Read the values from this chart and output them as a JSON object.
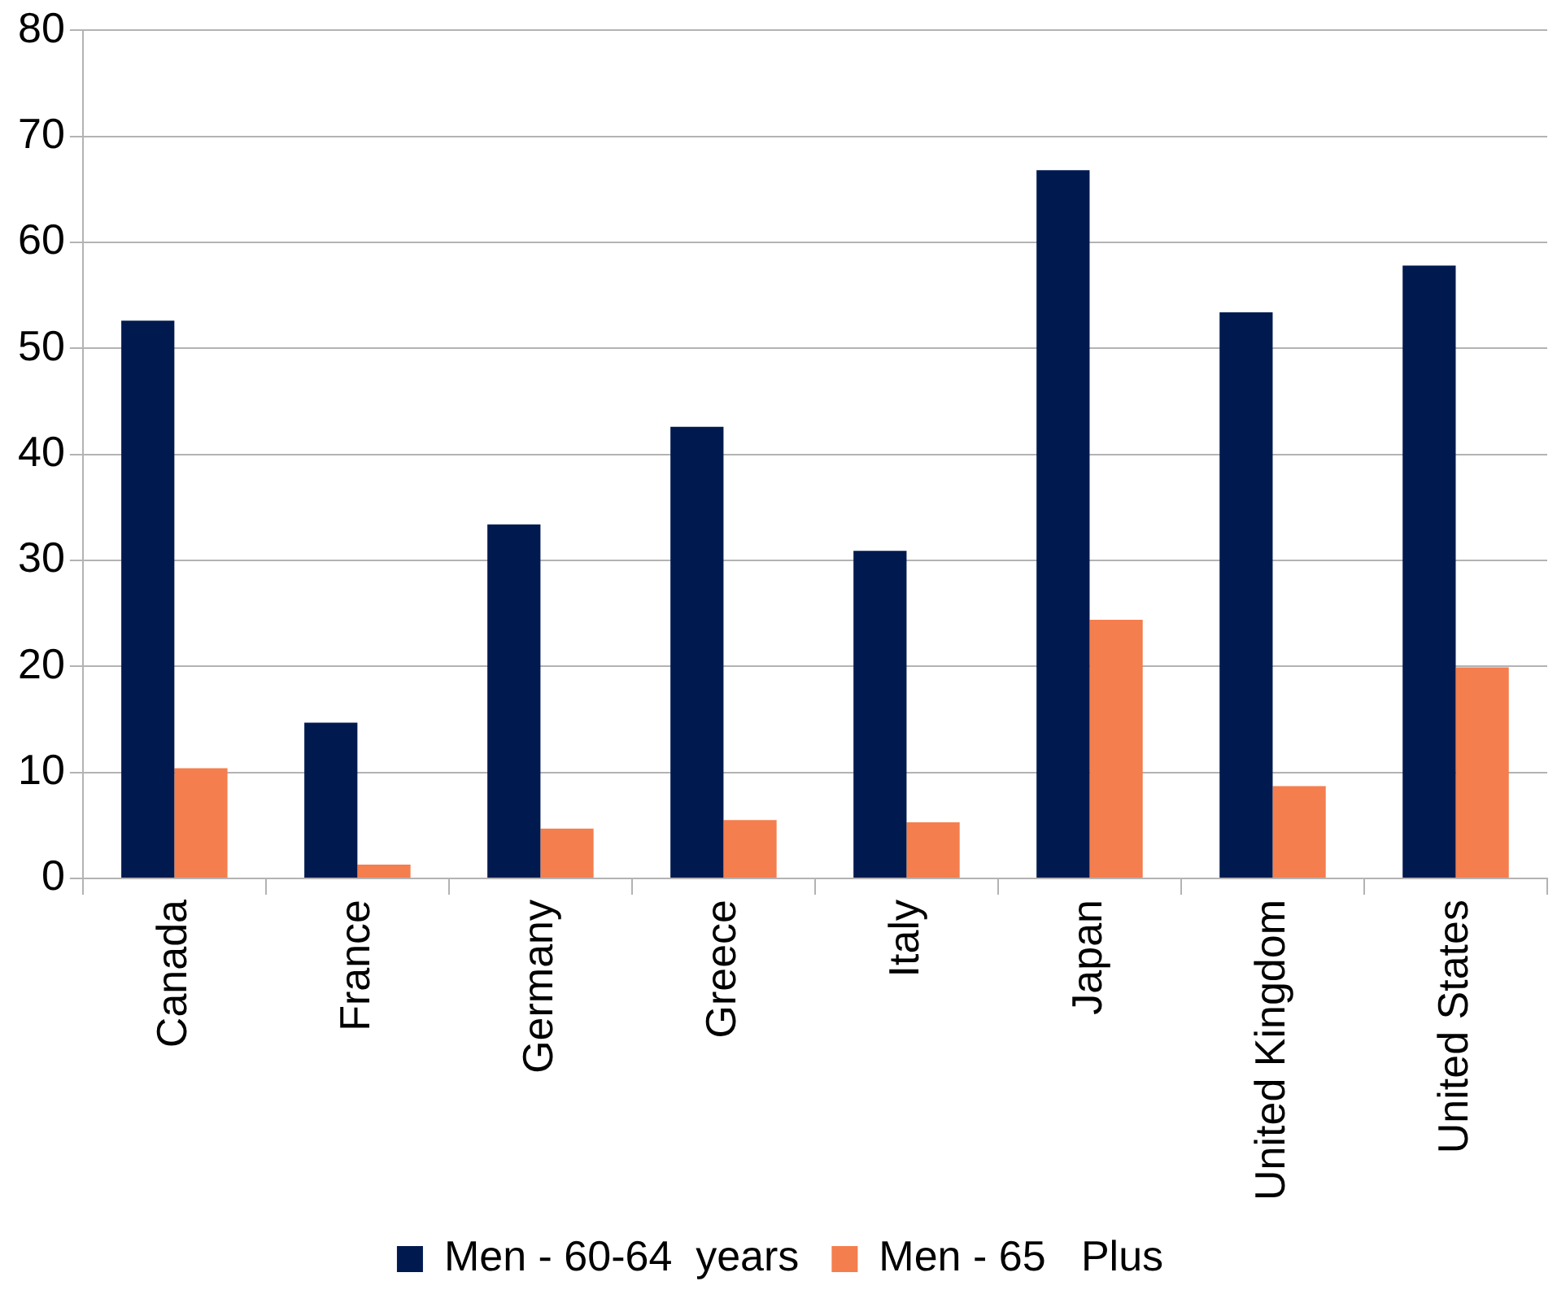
{
  "chart_data": {
    "type": "bar",
    "categories": [
      "Canada",
      "France",
      "Germany",
      "Greece",
      "Italy",
      "Japan",
      "United Kingdom",
      "United States"
    ],
    "series": [
      {
        "name": "Men - 60-64  years",
        "color": "#001a4f",
        "values": [
          52.6,
          14.7,
          33.4,
          42.6,
          30.9,
          66.8,
          53.4,
          57.8
        ]
      },
      {
        "name": "Men - 65   Plus",
        "color": "#f47e4d",
        "values": [
          10.4,
          1.3,
          4.7,
          5.5,
          5.3,
          24.4,
          8.7,
          19.9
        ]
      }
    ],
    "ylim": [
      0,
      80
    ],
    "yticks": [
      0,
      10,
      20,
      30,
      40,
      50,
      60,
      70,
      80
    ],
    "grid": "y",
    "legend": "bottom"
  }
}
